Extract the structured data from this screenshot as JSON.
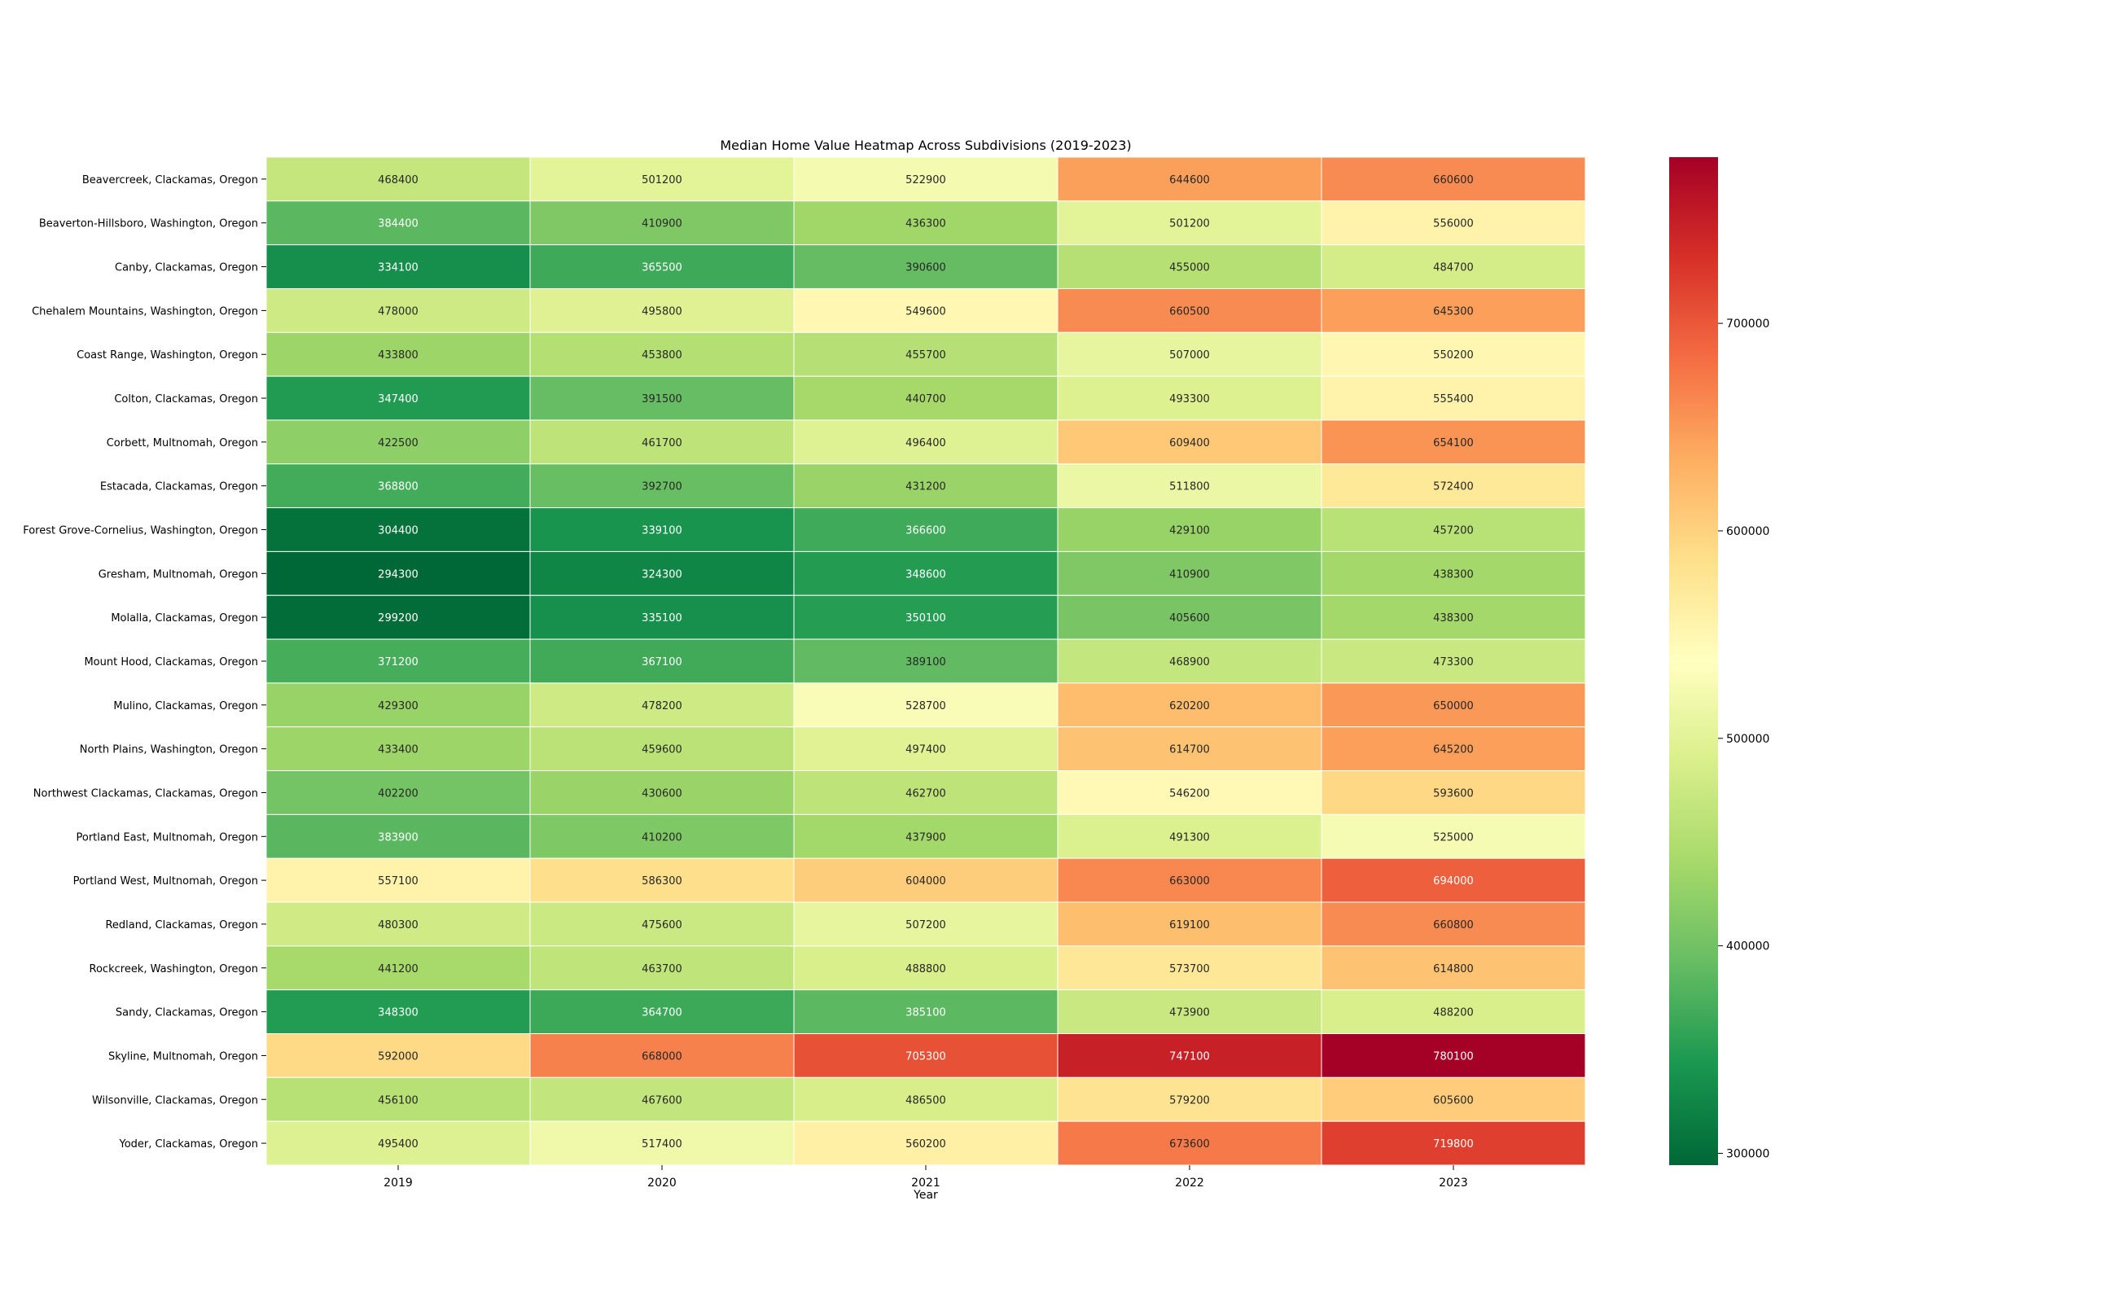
{
  "chart_data": {
    "type": "heatmap",
    "title": "Median Home Value Heatmap Across Subdivisions (2019-2023)",
    "xlabel": "Year",
    "ylabel": "",
    "x": [
      "2019",
      "2020",
      "2021",
      "2022",
      "2023"
    ],
    "y": [
      "Beavercreek, Clackamas, Oregon",
      "Beaverton-Hillsboro, Washington, Oregon",
      "Canby, Clackamas, Oregon",
      "Chehalem Mountains, Washington, Oregon",
      "Coast Range, Washington, Oregon",
      "Colton, Clackamas, Oregon",
      "Corbett, Multnomah, Oregon",
      "Estacada, Clackamas, Oregon",
      "Forest Grove-Cornelius, Washington, Oregon",
      "Gresham, Multnomah, Oregon",
      "Molalla, Clackamas, Oregon",
      "Mount Hood, Clackamas, Oregon",
      "Mulino, Clackamas, Oregon",
      "North Plains, Washington, Oregon",
      "Northwest Clackamas, Clackamas, Oregon",
      "Portland East, Multnomah, Oregon",
      "Portland West, Multnomah, Oregon",
      "Redland, Clackamas, Oregon",
      "Rockcreek, Washington, Oregon",
      "Sandy, Clackamas, Oregon",
      "Skyline, Multnomah, Oregon",
      "Wilsonville, Clackamas, Oregon",
      "Yoder, Clackamas, Oregon"
    ],
    "values": [
      [
        468400,
        501200,
        522900,
        644600,
        660600
      ],
      [
        384400,
        410900,
        436300,
        501200,
        556000
      ],
      [
        334100,
        365500,
        390600,
        455000,
        484700
      ],
      [
        478000,
        495800,
        549600,
        660500,
        645300
      ],
      [
        433800,
        453800,
        455700,
        507000,
        550200
      ],
      [
        347400,
        391500,
        440700,
        493300,
        555400
      ],
      [
        422500,
        461700,
        496400,
        609400,
        654100
      ],
      [
        368800,
        392700,
        431200,
        511800,
        572400
      ],
      [
        304400,
        339100,
        366600,
        429100,
        457200
      ],
      [
        294300,
        324300,
        348600,
        410900,
        438300
      ],
      [
        299200,
        335100,
        350100,
        405600,
        438300
      ],
      [
        371200,
        367100,
        389100,
        468900,
        473300
      ],
      [
        429300,
        478200,
        528700,
        620200,
        650000
      ],
      [
        433400,
        459600,
        497400,
        614700,
        645200
      ],
      [
        402200,
        430600,
        462700,
        546200,
        593600
      ],
      [
        383900,
        410200,
        437900,
        491300,
        525000
      ],
      [
        557100,
        586300,
        604000,
        663000,
        694000
      ],
      [
        480300,
        475600,
        507200,
        619100,
        660800
      ],
      [
        441200,
        463700,
        488800,
        573700,
        614800
      ],
      [
        348300,
        364700,
        385100,
        473900,
        488200
      ],
      [
        592000,
        668000,
        705300,
        747100,
        780100
      ],
      [
        456100,
        467600,
        486500,
        579200,
        605600
      ],
      [
        495400,
        517400,
        560200,
        673600,
        719800
      ]
    ],
    "colormap": "RdYlGn_r",
    "vmin": 294300,
    "vmax": 780100,
    "colorbar_ticks": [
      300000,
      400000,
      500000,
      600000,
      700000
    ],
    "annotations": true,
    "grid": false,
    "legend": "colorbar-right"
  }
}
